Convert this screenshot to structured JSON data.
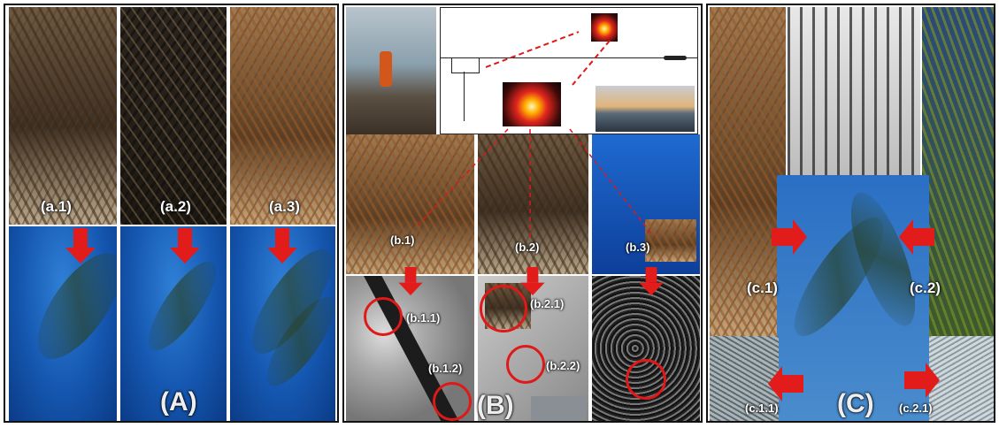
{
  "panel_A": {
    "label": "(A)",
    "sublabels": [
      "(a.1)",
      "(a.2)",
      "(a.3)"
    ]
  },
  "panel_B": {
    "label": "(B)",
    "sublabels": [
      "(b.1)",
      "(b.2)",
      "(b.3)"
    ],
    "detail_labels": [
      "(b.1.1)",
      "(b.1.2)",
      "(b.2.1)",
      "(b.2.2)"
    ]
  },
  "panel_C": {
    "label": "(C)",
    "sublabels": [
      "(c.1)",
      "(c.2)"
    ],
    "detail_labels": [
      "(c.1.1)",
      "(c.2.1)"
    ]
  },
  "colors": {
    "arrow": "#e21b1b",
    "ring": "#e01818",
    "border": "#111111"
  }
}
